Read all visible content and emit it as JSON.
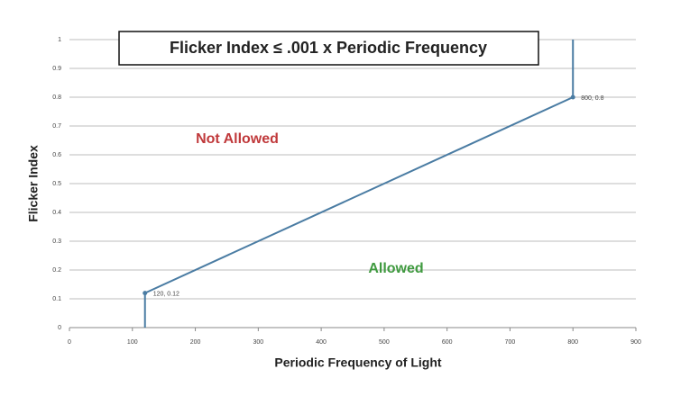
{
  "chart_data": {
    "type": "line",
    "title": "Flicker Index ≤ .001 x Periodic Frequency",
    "x_label": "Periodic Frequency of Light",
    "y_label": "Flicker Index",
    "x": [
      120,
      120,
      800,
      800
    ],
    "values": [
      0,
      0.12,
      0.8,
      1
    ],
    "value_labels": [
      null,
      "120, 0.12",
      "800, 0.8",
      null
    ],
    "color": "#4a7ca3",
    "xlim": [
      0,
      900
    ],
    "xticks": [
      0,
      100,
      200,
      300,
      400,
      500,
      600,
      700,
      800,
      900
    ],
    "ylim": [
      0,
      1
    ],
    "yticks": [
      0,
      0.1,
      0.2,
      0.3,
      0.4,
      0.5,
      0.6,
      0.7,
      0.8,
      0.9,
      1
    ],
    "grid": true,
    "annotations": [
      {
        "text": "Not Allowed",
        "color": "#c0393b"
      },
      {
        "text": "Allowed",
        "color": "#3f9a3f"
      }
    ]
  }
}
